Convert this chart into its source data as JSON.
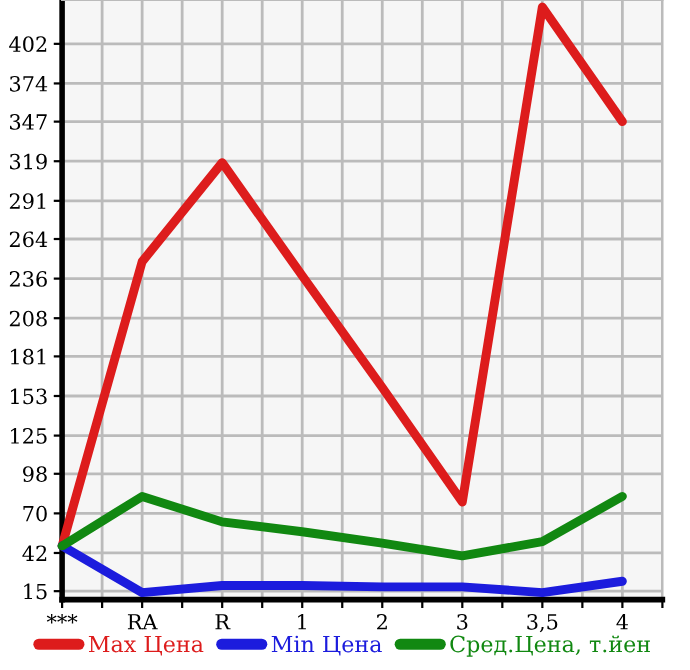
{
  "chart_data": {
    "type": "line",
    "categories": [
      "***",
      "RA",
      "R",
      "1",
      "2",
      "3",
      "3,5",
      "4"
    ],
    "series": [
      {
        "name": "Max Цена",
        "color": "#dd1c1c",
        "values": [
          47,
          248,
          318,
          238,
          159,
          78,
          428,
          347
        ]
      },
      {
        "name": "Min Цена",
        "color": "#1c1cdd",
        "values": [
          47,
          14,
          19,
          19,
          18,
          18,
          14,
          22
        ]
      },
      {
        "name": "Сред.Цена, т.йен",
        "color": "#118811",
        "values": [
          47,
          82,
          64,
          57,
          49,
          40,
          50,
          82
        ]
      }
    ],
    "ylim": [
      9,
      433
    ],
    "yticks": [
      15,
      42,
      70,
      98,
      125,
      153,
      181,
      208,
      236,
      264,
      291,
      319,
      347,
      374,
      402
    ],
    "grid": true,
    "legend": "bottom",
    "marker": "none",
    "line_style": "solid"
  }
}
